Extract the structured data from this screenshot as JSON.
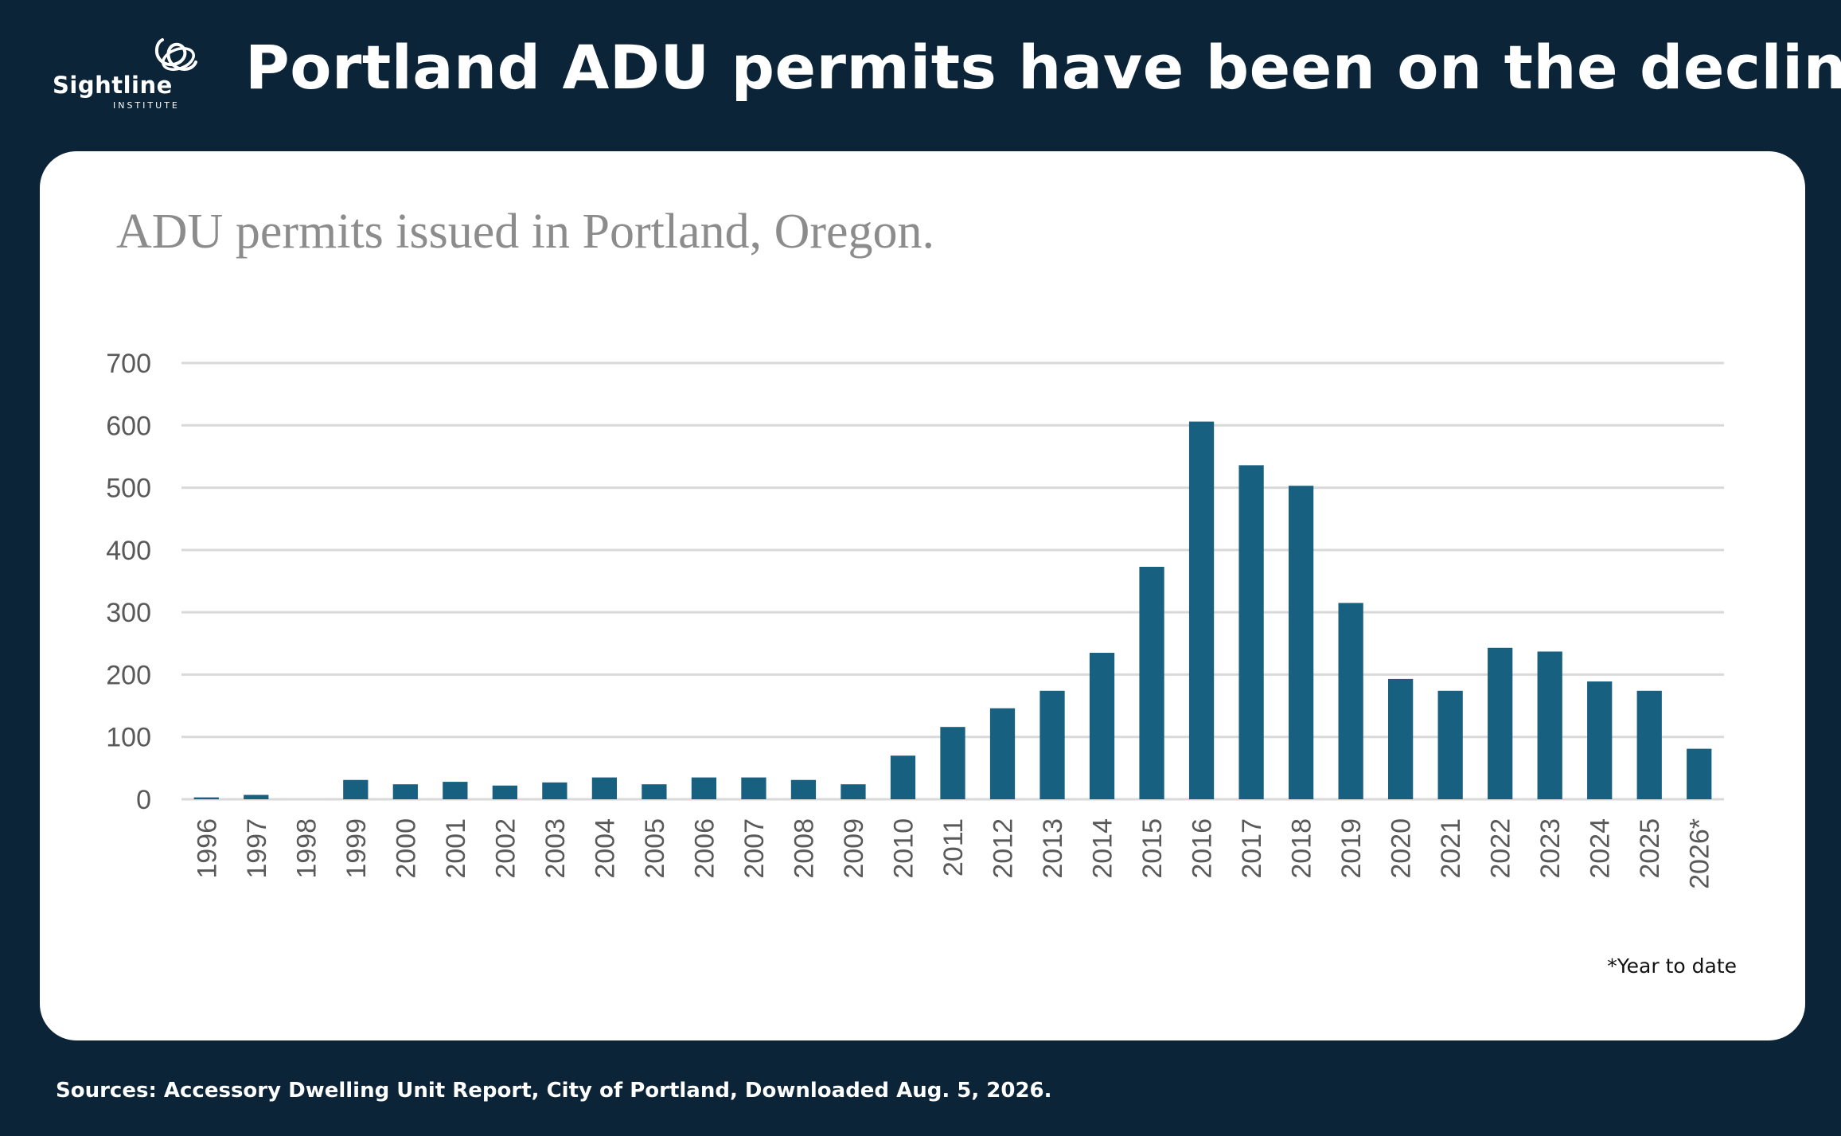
{
  "brand": {
    "name": "Sightline",
    "sub": "INSTITUTE",
    "icon": "sightline-logo-icon"
  },
  "headline": "Portland ADU permits have been on the decline",
  "subtitle": "ADU permits issued in Portland, Oregon.",
  "footnote": "*Year to date",
  "sources": "Sources: Accessory Dwelling Unit Report, City of Portland, Downloaded Aug. 5, 2026.",
  "colors": {
    "background": "#0b2438",
    "bar": "#17607f",
    "grid": "#d9d9d9"
  },
  "chart_data": {
    "type": "bar",
    "title": "ADU permits issued in Portland, Oregon.",
    "xlabel": "",
    "ylabel": "",
    "ylim": [
      0,
      700
    ],
    "yticks": [
      0,
      100,
      200,
      300,
      400,
      500,
      600,
      700
    ],
    "grid": true,
    "legend": "none",
    "categories": [
      "1996",
      "1997",
      "1998",
      "1999",
      "2000",
      "2001",
      "2002",
      "2003",
      "2004",
      "2005",
      "2006",
      "2007",
      "2008",
      "2009",
      "2010",
      "2011",
      "2012",
      "2013",
      "2014",
      "2015",
      "2016",
      "2017",
      "2018",
      "2019",
      "2020",
      "2021",
      "2022",
      "2023",
      "2024",
      "2025",
      "2026*"
    ],
    "values": [
      3,
      7,
      0,
      31,
      24,
      28,
      22,
      27,
      35,
      24,
      35,
      35,
      31,
      24,
      70,
      116,
      146,
      174,
      235,
      373,
      606,
      536,
      503,
      315,
      193,
      174,
      243,
      237,
      189,
      174,
      81
    ]
  }
}
